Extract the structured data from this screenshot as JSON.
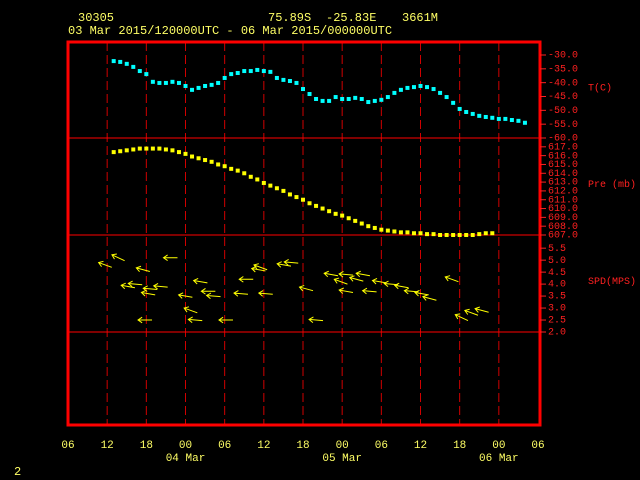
{
  "chart_data": {
    "type": "meteogram",
    "station": "30305",
    "latitude": "75.89S",
    "longitude": "-25.83E",
    "elevation": "3661M",
    "period": "03 Mar 2015/120000UTC - 06 Mar 2015/000000UTC",
    "footer": "2",
    "xlim": [
      0,
      72
    ],
    "xticks": [
      {
        "value": 0,
        "label": "06"
      },
      {
        "value": 6,
        "label": "12"
      },
      {
        "value": 12,
        "label": "18"
      },
      {
        "value": 18,
        "label": "00"
      },
      {
        "value": 24,
        "label": "06"
      },
      {
        "value": 30,
        "label": "12"
      },
      {
        "value": 36,
        "label": "18"
      },
      {
        "value": 42,
        "label": "00"
      },
      {
        "value": 48,
        "label": "06"
      },
      {
        "value": 54,
        "label": "12"
      },
      {
        "value": 60,
        "label": "18"
      },
      {
        "value": 66,
        "label": "00"
      },
      {
        "value": 72,
        "label": "06"
      }
    ],
    "date_labels": [
      {
        "value": 18,
        "label": "04 Mar"
      },
      {
        "value": 42,
        "label": "05 Mar"
      },
      {
        "value": 66,
        "label": "06 Mar"
      }
    ],
    "grid": true,
    "panels": [
      {
        "type": "scatter",
        "label": "T(C)",
        "color": "#00ffff",
        "ylim": [
          -60,
          -25.3
        ],
        "yticks": [
          {
            "value": -30,
            "label": "-30.0"
          },
          {
            "value": -35,
            "label": "-35.0"
          },
          {
            "value": -40,
            "label": "-40.0"
          },
          {
            "value": -45,
            "label": "-45.0"
          },
          {
            "value": -50,
            "label": "-50.0"
          },
          {
            "value": -55,
            "label": "-55.0"
          },
          {
            "value": -60,
            "label": "-60.0"
          }
        ],
        "x": [
          7,
          8,
          9,
          10,
          11,
          12,
          13,
          14,
          15,
          16,
          17,
          18,
          19,
          20,
          21,
          22,
          23,
          24,
          25,
          26,
          27,
          28,
          29,
          30,
          31,
          32,
          33,
          34,
          35,
          36,
          37,
          38,
          39,
          40,
          41,
          42,
          43,
          44,
          45,
          46,
          47,
          48,
          49,
          50,
          51,
          52,
          53,
          54,
          55,
          56,
          57,
          58,
          59,
          60,
          61,
          62,
          63,
          64,
          65,
          66,
          67,
          68,
          69,
          70
        ],
        "values": [
          -32.2,
          -32.5,
          -33.2,
          -34.3,
          -35.8,
          -36.9,
          -39.7,
          -40.1,
          -40.1,
          -39.7,
          -40.1,
          -41.2,
          -42.6,
          -41.9,
          -41.2,
          -40.8,
          -40.1,
          -38.3,
          -36.9,
          -36.5,
          -35.8,
          -35.8,
          -35.4,
          -35.8,
          -36.1,
          -38.3,
          -39.0,
          -39.4,
          -40.1,
          -42.3,
          -44.1,
          -45.9,
          -46.6,
          -46.6,
          -45.2,
          -45.9,
          -45.9,
          -45.5,
          -45.9,
          -47.0,
          -46.6,
          -46.2,
          -45.2,
          -43.7,
          -42.6,
          -41.9,
          -41.6,
          -41.2,
          -41.6,
          -42.3,
          -43.7,
          -45.2,
          -47.3,
          -49.5,
          -50.6,
          -51.3,
          -52.0,
          -52.4,
          -52.7,
          -53.1,
          -53.1,
          -53.5,
          -53.8,
          -54.5
        ]
      },
      {
        "type": "scatter",
        "label": "Pre (mb)",
        "color": "#ffff00",
        "ylim": [
          607,
          618
        ],
        "yticks": [
          {
            "value": 617,
            "label": "617.0"
          },
          {
            "value": 616,
            "label": "616.0"
          },
          {
            "value": 615,
            "label": "615.0"
          },
          {
            "value": 614,
            "label": "614.0"
          },
          {
            "value": 613,
            "label": "613.0"
          },
          {
            "value": 612,
            "label": "612.0"
          },
          {
            "value": 611,
            "label": "611.0"
          },
          {
            "value": 610,
            "label": "610.0"
          },
          {
            "value": 609,
            "label": "609.0"
          },
          {
            "value": 608,
            "label": "608.0"
          },
          {
            "value": 607,
            "label": "607.0"
          }
        ],
        "x": [
          7,
          8,
          9,
          10,
          11,
          12,
          13,
          14,
          15,
          16,
          17,
          18,
          19,
          20,
          21,
          22,
          23,
          24,
          25,
          26,
          27,
          28,
          29,
          30,
          31,
          32,
          33,
          34,
          35,
          36,
          37,
          38,
          39,
          40,
          41,
          42,
          43,
          44,
          45,
          46,
          47,
          48,
          49,
          50,
          51,
          52,
          53,
          54,
          55,
          56,
          57,
          58,
          59,
          60,
          61,
          62,
          63,
          64,
          65
        ],
        "values": [
          616.4,
          616.5,
          616.6,
          616.7,
          616.8,
          616.8,
          616.8,
          616.8,
          616.7,
          616.6,
          616.4,
          616.2,
          615.9,
          615.7,
          615.5,
          615.3,
          615.0,
          614.8,
          614.5,
          614.3,
          614.0,
          613.6,
          613.3,
          612.9,
          612.6,
          612.3,
          612.0,
          611.6,
          611.3,
          611.0,
          610.6,
          610.3,
          610.0,
          609.7,
          609.4,
          609.2,
          608.9,
          608.6,
          608.3,
          608.0,
          607.8,
          607.6,
          607.5,
          607.4,
          607.3,
          607.3,
          607.2,
          607.2,
          607.1,
          607.1,
          607.0,
          607.0,
          607.0,
          607.0,
          607.0,
          607.0,
          607.1,
          607.2,
          607.2
        ]
      },
      {
        "type": "wind",
        "label": "SPD(MPS)",
        "color": "#ffff00",
        "ylim": [
          2,
          6.05
        ],
        "yticks": [
          5.5,
          {
            "value": 5,
            "label": "5.0"
          },
          4.5,
          {
            "value": 4,
            "label": "4.0"
          },
          3.5,
          {
            "value": 3,
            "label": "3.0"
          },
          2.5,
          {
            "value": 2,
            "label": "2.0"
          }
        ],
        "x": [
          5.7,
          7.7,
          9.2,
          10.3,
          11.5,
          11.8,
          12.3,
          12.6,
          14.2,
          15.7,
          18.0,
          18.8,
          19.5,
          20.3,
          21.5,
          22.3,
          24.2,
          26.5,
          27.3,
          29.2,
          29.5,
          30.3,
          33.1,
          34.2,
          36.5,
          38.0,
          40.3,
          41.8,
          42.6,
          42.6,
          44.2,
          45.2,
          46.2,
          47.7,
          49.5,
          51.1,
          52.6,
          54.2,
          55.4,
          58.8,
          60.3,
          61.8,
          63.4
        ],
        "values": [
          4.8,
          5.1,
          3.9,
          4.0,
          4.6,
          2.5,
          3.6,
          3.8,
          3.9,
          5.1,
          3.5,
          2.9,
          2.5,
          4.1,
          3.7,
          3.5,
          2.5,
          3.6,
          4.2,
          4.6,
          4.7,
          3.6,
          4.8,
          4.9,
          3.8,
          2.5,
          4.4,
          4.1,
          4.4,
          3.7,
          4.2,
          4.4,
          3.7,
          4.1,
          4.0,
          3.9,
          3.7,
          3.6,
          3.4,
          4.2,
          2.6,
          2.8,
          2.9
        ],
        "directions": [
          110,
          115,
          100,
          95,
          105,
          90,
          100,
          95,
          95,
          90,
          100,
          110,
          95,
          100,
          90,
          95,
          90,
          95,
          90,
          100,
          110,
          95,
          100,
          95,
          105,
          95,
          100,
          110,
          95,
          100,
          105,
          100,
          95,
          100,
          95,
          100,
          95,
          100,
          105,
          110,
          115,
          110,
          105
        ]
      }
    ]
  }
}
